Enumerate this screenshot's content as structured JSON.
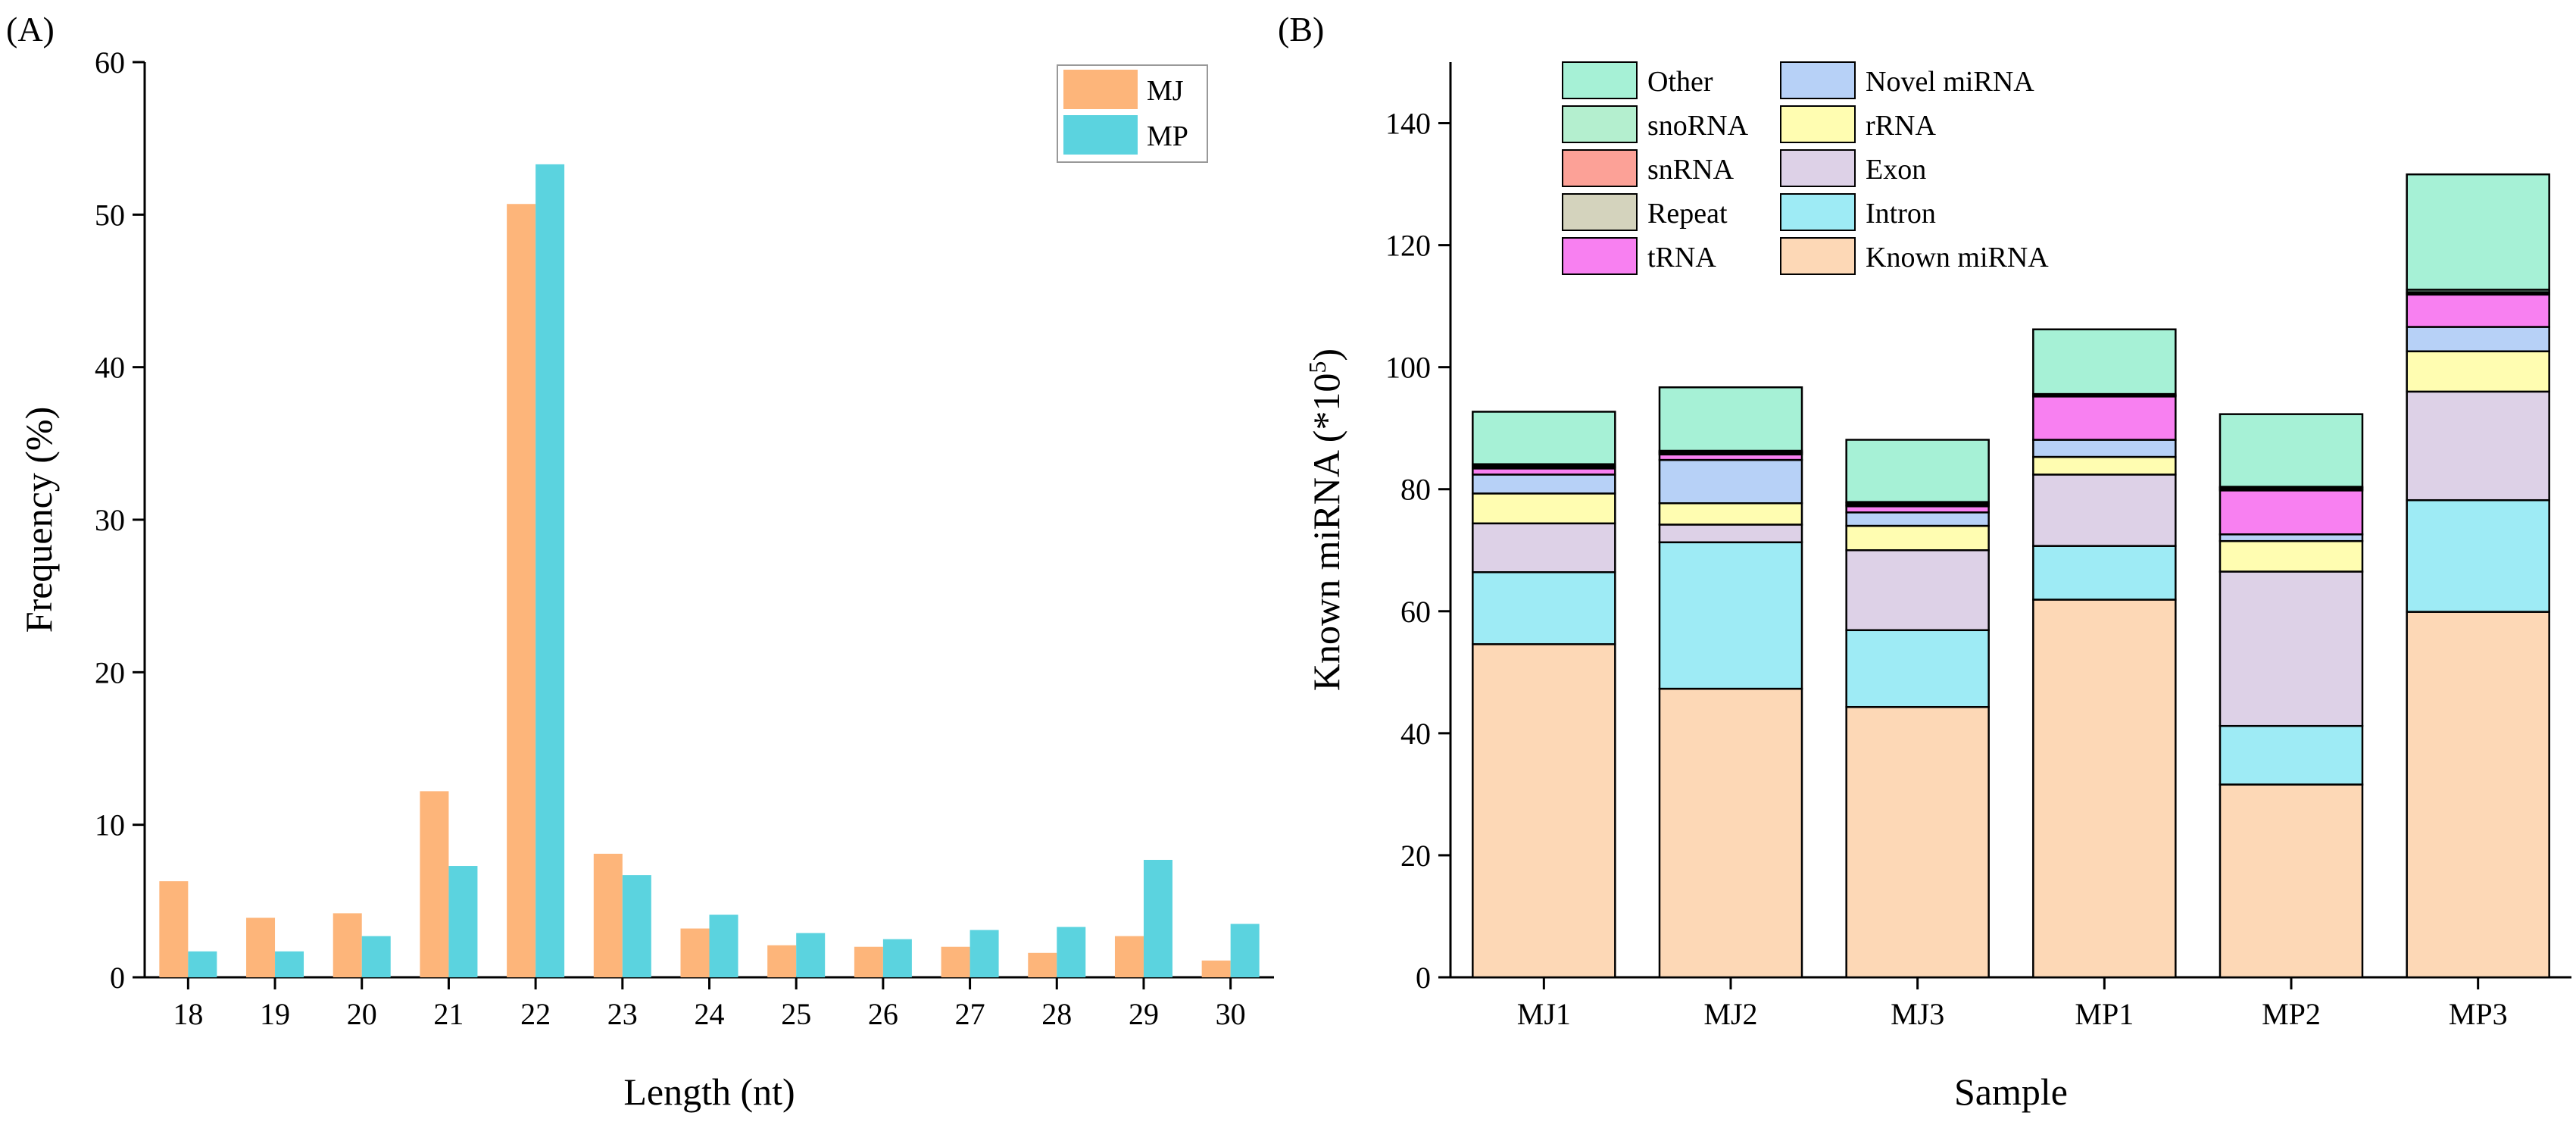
{
  "chart_data": [
    {
      "panel_label": "(A)",
      "type": "bar",
      "xlabel": "Length (nt)",
      "ylabel": "Frequency (%)",
      "ylim": [
        0,
        60
      ],
      "yticks": [
        "0",
        "10",
        "20",
        "30",
        "40",
        "50",
        "60"
      ],
      "categories": [
        "18",
        "19",
        "20",
        "21",
        "22",
        "23",
        "24",
        "25",
        "26",
        "27",
        "28",
        "29",
        "30"
      ],
      "legend_position": "top-right",
      "series": [
        {
          "name": "MJ",
          "color": "#FDB57A",
          "values": [
            6.3,
            3.9,
            4.2,
            12.2,
            50.7,
            8.1,
            3.2,
            2.1,
            2.0,
            2.0,
            1.6,
            2.7,
            1.1
          ]
        },
        {
          "name": "MP",
          "color": "#5BD3DF",
          "values": [
            1.7,
            1.7,
            2.7,
            7.3,
            53.3,
            6.7,
            4.1,
            2.9,
            2.5,
            3.1,
            3.3,
            7.7,
            3.5
          ]
        }
      ]
    },
    {
      "panel_label": "(B)",
      "type": "bar",
      "stacked": true,
      "xlabel": "Sample",
      "ylabel": "Known miRNA (*10",
      "ylabel_sup": "5",
      "ylabel_end": ")",
      "ylim": [
        0,
        150
      ],
      "yticks": [
        "0",
        "20",
        "40",
        "60",
        "80",
        "100",
        "120",
        "140"
      ],
      "categories": [
        "MJ1",
        "MJ2",
        "MJ3",
        "MP1",
        "MP2",
        "MP3"
      ],
      "legend_position": "top-left",
      "legend_order": [
        "Other",
        "snoRNA",
        "snRNA",
        "Repeat",
        "tRNA",
        "Novel miRNA",
        "rRNA",
        "Exon",
        "Intron",
        "Known miRNA"
      ],
      "series": [
        {
          "name": "Known miRNA",
          "color": "#FDD8B6",
          "values": [
            54.6,
            47.3,
            44.3,
            61.9,
            31.6,
            59.9
          ]
        },
        {
          "name": "Intron",
          "color": "#9EEBF5",
          "values": [
            11.8,
            24.0,
            12.6,
            8.8,
            9.6,
            18.3
          ]
        },
        {
          "name": "Exon",
          "color": "#DDD1E7",
          "values": [
            8.0,
            2.9,
            13.1,
            11.7,
            25.3,
            17.8
          ]
        },
        {
          "name": "rRNA",
          "color": "#FFFDB1",
          "values": [
            4.9,
            3.5,
            4.0,
            2.9,
            5.0,
            6.6
          ]
        },
        {
          "name": "Novel miRNA",
          "color": "#B7D1F7",
          "values": [
            3.1,
            7.1,
            2.2,
            2.8,
            1.1,
            4.0
          ]
        },
        {
          "name": "tRNA",
          "color": "#F880F1",
          "values": [
            1.0,
            0.9,
            1.0,
            7.1,
            7.2,
            5.3
          ]
        },
        {
          "name": "Repeat",
          "color": "#D4D3BD",
          "values": [
            0.2,
            0.2,
            0.2,
            0.1,
            0.2,
            0.2
          ]
        },
        {
          "name": "snRNA",
          "color": "#FCA197",
          "values": [
            0.2,
            0.2,
            0.3,
            0.1,
            0.2,
            0.2
          ]
        },
        {
          "name": "snoRNA",
          "color": "#B4EFCF",
          "values": [
            0.3,
            0.2,
            0.2,
            0.2,
            0.2,
            0.4
          ]
        },
        {
          "name": "Other",
          "color": "#A6F1D6",
          "values": [
            8.6,
            10.4,
            10.2,
            10.6,
            11.9,
            18.9
          ]
        }
      ]
    }
  ]
}
